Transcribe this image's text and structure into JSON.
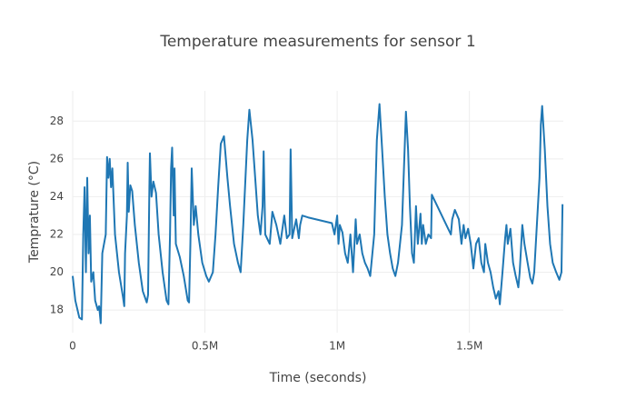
{
  "chart_data": {
    "type": "line",
    "title": "Temperature measurements for sensor 1",
    "x_label": "Time (seconds)",
    "y_label": "Temprature (°C)",
    "color": "#1f77b4",
    "grid": true,
    "xlim": [
      0,
      1855000
    ],
    "ylim": [
      16.8,
      29.6
    ],
    "xticks": [
      0,
      {
        "value": 500000,
        "label": "0.5M"
      },
      {
        "value": 1000000,
        "label": "1M"
      },
      {
        "value": 1500000,
        "label": "1.5M"
      }
    ],
    "yticks": [
      18,
      20,
      22,
      24,
      26,
      28
    ],
    "x": [
      0,
      10000,
      25000,
      35000,
      40000,
      45000,
      50000,
      55000,
      60000,
      65000,
      70000,
      78000,
      85000,
      95000,
      100000,
      106000,
      112000,
      125000,
      130000,
      135000,
      140000,
      145000,
      150000,
      160000,
      175000,
      190000,
      195000,
      198000,
      205000,
      208000,
      212000,
      218000,
      225000,
      235000,
      250000,
      265000,
      280000,
      285000,
      290000,
      292000,
      298000,
      305000,
      315000,
      325000,
      340000,
      355000,
      362000,
      368000,
      372000,
      376000,
      382000,
      385000,
      390000,
      405000,
      420000,
      435000,
      440000,
      445000,
      450000,
      458000,
      465000,
      475000,
      490000,
      505000,
      515000,
      530000,
      540000,
      550000,
      560000,
      572000,
      585000,
      595000,
      610000,
      625000,
      635000,
      645000,
      660000,
      668000,
      680000,
      690000,
      700000,
      710000,
      718000,
      722000,
      728000,
      745000,
      755000,
      770000,
      785000,
      800000,
      810000,
      820000,
      824000,
      830000,
      845000,
      855000,
      860000,
      868000,
      890000,
      980000,
      990000,
      1000000,
      1005000,
      1010000,
      1020000,
      1030000,
      1040000,
      1050000,
      1055000,
      1060000,
      1070000,
      1075000,
      1085000,
      1095000,
      1105000,
      1115000,
      1125000,
      1140000,
      1150000,
      1160000,
      1170000,
      1180000,
      1190000,
      1200000,
      1210000,
      1220000,
      1230000,
      1245000,
      1255000,
      1260000,
      1268000,
      1275000,
      1283000,
      1290000,
      1298000,
      1305000,
      1315000,
      1320000,
      1325000,
      1335000,
      1345000,
      1355000,
      1358000,
      1430000,
      1435000,
      1445000,
      1460000,
      1470000,
      1478000,
      1485000,
      1495000,
      1505000,
      1515000,
      1525000,
      1535000,
      1545000,
      1555000,
      1560000,
      1570000,
      1580000,
      1590000,
      1600000,
      1610000,
      1615000,
      1625000,
      1635000,
      1640000,
      1645000,
      1655000,
      1665000,
      1675000,
      1685000,
      1690000,
      1700000,
      1708000,
      1720000,
      1730000,
      1738000,
      1745000,
      1755000,
      1765000,
      1770000,
      1775000,
      1785000,
      1795000,
      1805000,
      1815000,
      1828000,
      1840000,
      1848000,
      1852000
    ],
    "values": [
      19.8,
      18.5,
      17.6,
      17.5,
      22,
      24.5,
      20,
      25,
      21,
      23,
      19.5,
      20,
      18.5,
      18,
      18.2,
      17.3,
      21,
      22,
      26.1,
      25,
      26,
      24.5,
      25.5,
      22,
      20,
      18.7,
      18.2,
      21,
      23,
      25.8,
      23.2,
      24.6,
      24.3,
      22.5,
      20.5,
      19,
      18.4,
      18.8,
      24.5,
      26.3,
      24,
      24.8,
      24.2,
      22,
      20,
      18.5,
      18.3,
      22,
      25.5,
      26.6,
      23,
      25.5,
      21.5,
      20.8,
      19.8,
      18.5,
      18.4,
      21.5,
      25.5,
      22.5,
      23.5,
      22,
      20.5,
      19.8,
      19.5,
      20,
      22,
      24.5,
      26.8,
      27.2,
      25,
      23.5,
      21.5,
      20.5,
      20,
      22.5,
      27,
      28.6,
      27,
      25,
      23,
      22,
      23.5,
      26.4,
      22,
      21.5,
      23.2,
      22.5,
      21.5,
      23,
      21.8,
      22,
      26.5,
      21.8,
      22.8,
      21.8,
      22.5,
      23,
      22.9,
      22.6,
      22,
      23,
      21.5,
      22.5,
      22.1,
      21,
      20.5,
      22,
      21,
      20,
      22.8,
      21.5,
      22,
      21,
      20.5,
      20.2,
      19.8,
      22,
      27,
      28.9,
      26.5,
      24,
      22,
      21,
      20.2,
      19.8,
      20.5,
      22.5,
      26.5,
      28.5,
      26.5,
      23.5,
      21,
      20.5,
      23.5,
      21.5,
      23.1,
      21.5,
      22.5,
      21.5,
      22,
      21.8,
      24.1,
      22,
      22.8,
      23.3,
      22.8,
      21.5,
      22.5,
      21.8,
      22.3,
      21.5,
      20.2,
      21.5,
      21.8,
      20.5,
      20,
      21.5,
      20.5,
      20,
      19.2,
      18.6,
      19,
      18.3,
      20,
      21.8,
      22.5,
      21.5,
      22.3,
      20.5,
      19.8,
      19.2,
      20,
      22.5,
      21.5,
      20.5,
      19.7,
      19.4,
      20,
      22.5,
      25,
      27.8,
      28.8,
      26.5,
      23.5,
      21.5,
      20.5,
      20,
      19.6,
      20,
      23.6
    ]
  }
}
